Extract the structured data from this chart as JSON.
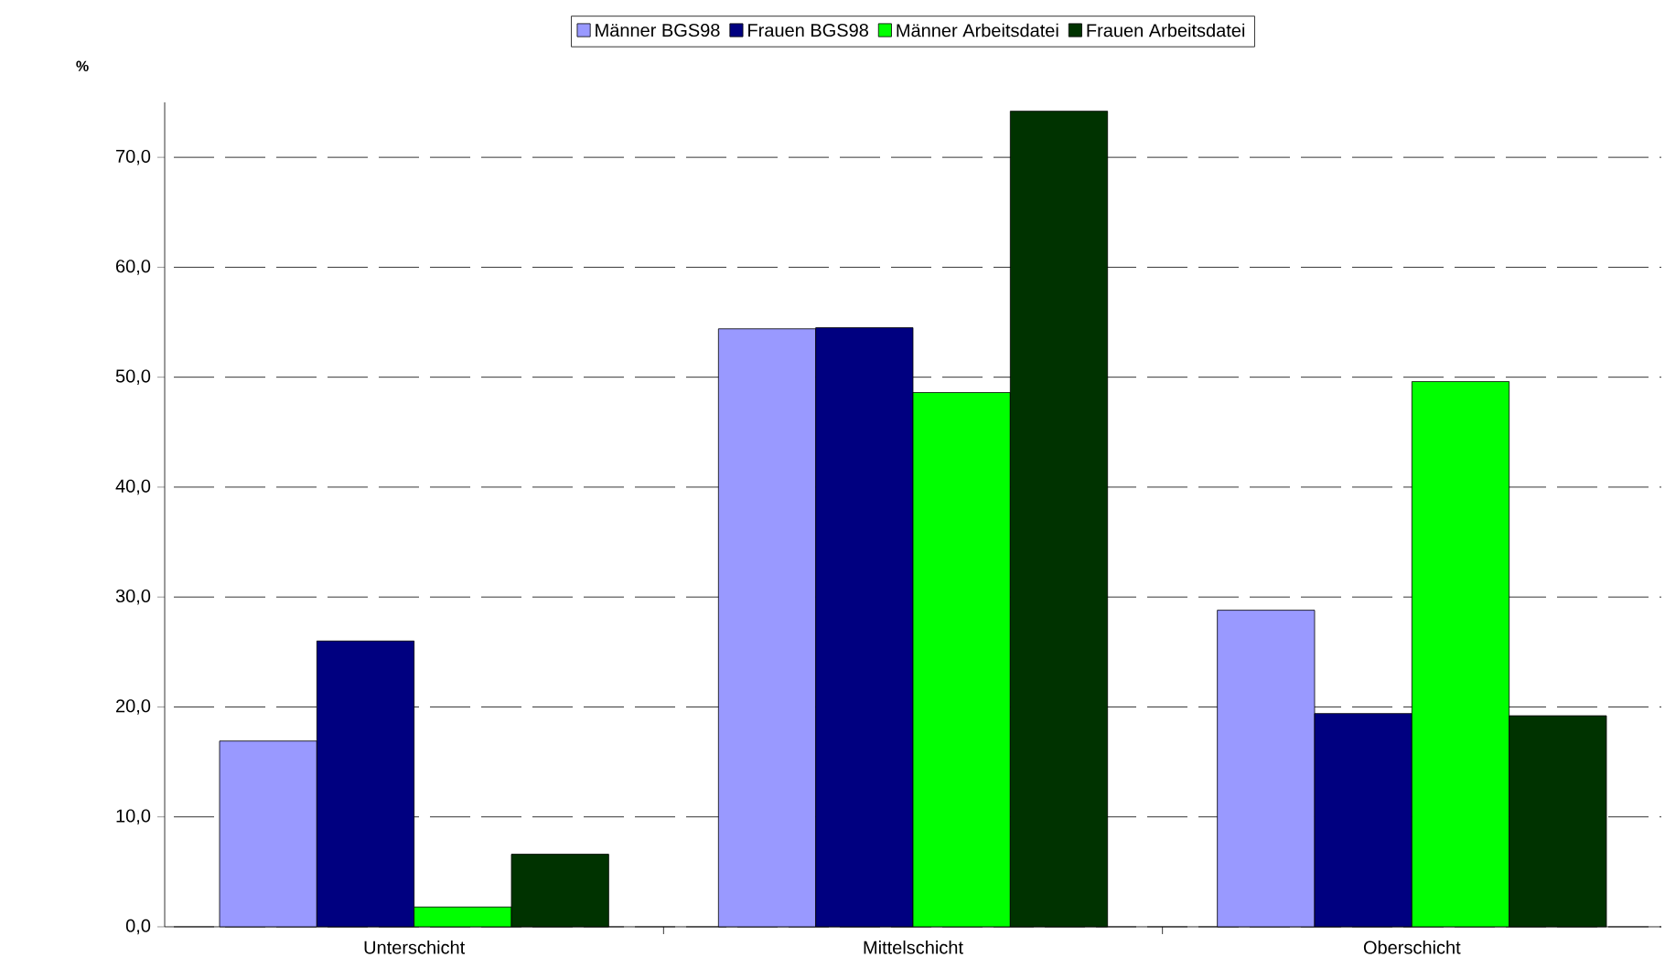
{
  "chart_data": {
    "type": "bar",
    "ylabel": "%",
    "categories": [
      "Unterschicht",
      "Mittelschicht",
      "Oberschicht"
    ],
    "series": [
      {
        "name": "Männer BGS98",
        "color": "#9999ff",
        "values": [
          16.9,
          54.4,
          28.8
        ]
      },
      {
        "name": "Frauen BGS98",
        "color": "#000080",
        "values": [
          26.0,
          54.5,
          19.4
        ]
      },
      {
        "name": "Männer Arbeitsdatei",
        "color": "#00ff00",
        "values": [
          1.8,
          48.6,
          49.6
        ]
      },
      {
        "name": "Frauen Arbeitsdatei",
        "color": "#003300",
        "values": [
          6.6,
          74.2,
          19.2
        ]
      }
    ],
    "ylim": [
      0,
      75
    ],
    "yticks": [
      {
        "value": 0,
        "label": "0,0"
      },
      {
        "value": 10,
        "label": "10,0"
      },
      {
        "value": 20,
        "label": "20,0"
      },
      {
        "value": 30,
        "label": "30,0"
      },
      {
        "value": 40,
        "label": "40,0"
      },
      {
        "value": 50,
        "label": "50,0"
      },
      {
        "value": 60,
        "label": "60,0"
      },
      {
        "value": 70,
        "label": "70,0"
      }
    ],
    "grid": "y",
    "legend": "top"
  }
}
